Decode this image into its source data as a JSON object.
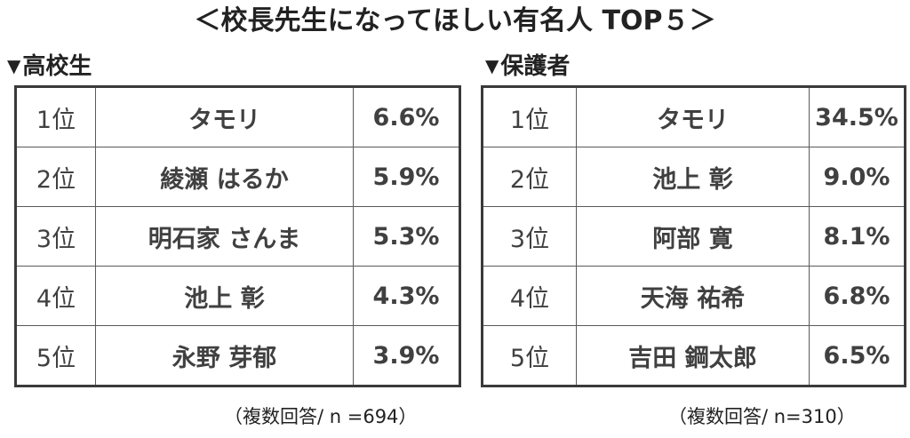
{
  "title": "＜校長先生になってほしい有名人 TOP５＞",
  "chart_data": [
    {
      "type": "table",
      "title": "高校生",
      "columns": [
        "rank",
        "name",
        "percent"
      ],
      "rows": [
        {
          "rank": "1位",
          "name": "タモリ",
          "percent": "6.6%"
        },
        {
          "rank": "2位",
          "name": "綾瀬 はるか",
          "percent": "5.9%"
        },
        {
          "rank": "3位",
          "name": "明石家 さんま",
          "percent": "5.3%"
        },
        {
          "rank": "4位",
          "name": "池上 彰",
          "percent": "4.3%"
        },
        {
          "rank": "5位",
          "name": "永野 芽郁",
          "percent": "3.9%"
        }
      ],
      "values": [
        6.6,
        5.9,
        5.3,
        4.3,
        3.9
      ],
      "note": "（複数回答/ n =694）"
    },
    {
      "type": "table",
      "title": "保護者",
      "columns": [
        "rank",
        "name",
        "percent"
      ],
      "rows": [
        {
          "rank": "1位",
          "name": "タモリ",
          "percent": "34.5%"
        },
        {
          "rank": "2位",
          "name": "池上 彰",
          "percent": "9.0%"
        },
        {
          "rank": "3位",
          "name": "阿部 寛",
          "percent": "8.1%"
        },
        {
          "rank": "4位",
          "name": "天海 祐希",
          "percent": "6.8%"
        },
        {
          "rank": "5位",
          "name": "吉田 鋼太郎",
          "percent": "6.5%"
        }
      ],
      "values": [
        34.5,
        9.0,
        8.1,
        6.8,
        6.5
      ],
      "note": "（複数回答/ n=310）"
    }
  ],
  "colors": {
    "border": "#3a3a3a",
    "text": "#404040",
    "title": "#222222"
  }
}
